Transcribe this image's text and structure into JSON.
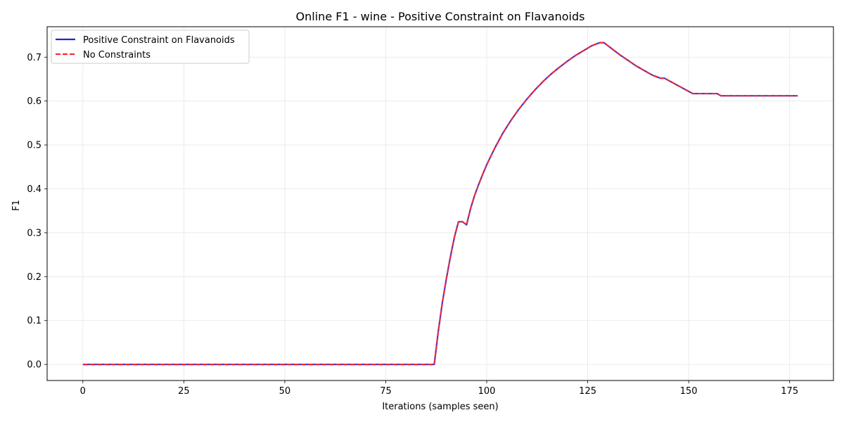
{
  "chart_data": {
    "type": "line",
    "title": "Online F1 - wine - Positive Constraint on Flavanoids",
    "xlabel": "Iterations (samples seen)",
    "ylabel": "F1",
    "xlim": [
      -8.85,
      185.85
    ],
    "ylim": [
      -0.0366,
      0.7693
    ],
    "xticks": [
      0,
      25,
      50,
      75,
      100,
      125,
      150,
      175
    ],
    "xtick_labels": [
      "0",
      "25",
      "50",
      "75",
      "100",
      "125",
      "150",
      "175"
    ],
    "yticks": [
      0.0,
      0.1,
      0.2,
      0.3,
      0.4,
      0.5,
      0.6,
      0.7
    ],
    "ytick_labels": [
      "0.0",
      "0.1",
      "0.2",
      "0.3",
      "0.4",
      "0.5",
      "0.6",
      "0.7"
    ],
    "grid": true,
    "legend_position": "upper left",
    "series": [
      {
        "name": "Positive Constraint on Flavanoids",
        "color": "#2323d6",
        "style": "solid",
        "x": [
          0,
          87,
          88,
          89,
          90,
          91,
          92,
          93,
          94,
          95,
          96,
          97,
          98,
          99,
          100,
          102,
          104,
          106,
          108,
          110,
          112,
          114,
          116,
          118,
          120,
          122,
          124,
          126,
          128,
          129,
          133,
          137,
          141,
          143,
          144,
          148,
          151,
          154,
          157,
          158,
          170,
          177
        ],
        "y": [
          0.0,
          0.0,
          0.075,
          0.14,
          0.195,
          0.245,
          0.29,
          0.325,
          0.325,
          0.318,
          0.355,
          0.385,
          0.41,
          0.433,
          0.455,
          0.493,
          0.527,
          0.556,
          0.582,
          0.605,
          0.626,
          0.645,
          0.662,
          0.677,
          0.691,
          0.704,
          0.715,
          0.726,
          0.733,
          0.733,
          0.705,
          0.68,
          0.659,
          0.652,
          0.652,
          0.632,
          0.617,
          0.617,
          0.617,
          0.612,
          0.612,
          0.612
        ]
      },
      {
        "name": "No Constraints",
        "color": "#ff2a2a",
        "style": "dashed",
        "x": [
          0,
          87,
          88,
          89,
          90,
          91,
          92,
          93,
          94,
          95,
          96,
          97,
          98,
          99,
          100,
          102,
          104,
          106,
          108,
          110,
          112,
          114,
          116,
          118,
          120,
          122,
          124,
          126,
          128,
          129,
          133,
          137,
          141,
          143,
          144,
          148,
          151,
          154,
          157,
          158,
          170,
          177
        ],
        "y": [
          0.0,
          0.0,
          0.075,
          0.14,
          0.195,
          0.245,
          0.29,
          0.325,
          0.325,
          0.318,
          0.355,
          0.385,
          0.41,
          0.433,
          0.455,
          0.493,
          0.527,
          0.556,
          0.582,
          0.605,
          0.626,
          0.645,
          0.662,
          0.677,
          0.691,
          0.704,
          0.715,
          0.726,
          0.733,
          0.733,
          0.705,
          0.68,
          0.659,
          0.652,
          0.652,
          0.632,
          0.617,
          0.617,
          0.617,
          0.612,
          0.612,
          0.612
        ]
      }
    ]
  }
}
